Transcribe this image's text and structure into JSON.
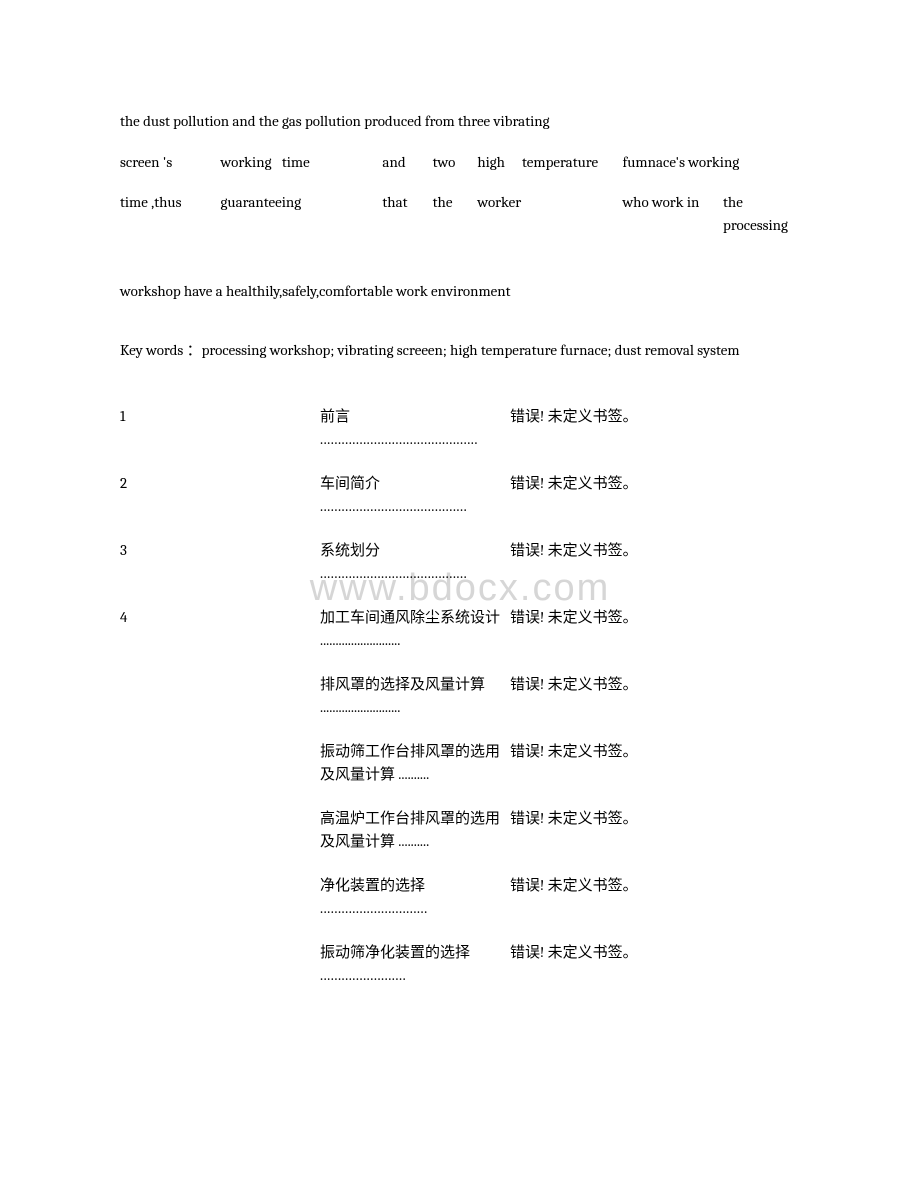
{
  "watermark": "www.bdocx.com",
  "para1": "the dust pollution and the gas pollution produced from three vibrating",
  "table1": {
    "r0": [
      "screen 's",
      "working",
      "time",
      "and",
      "two",
      "high",
      "temperature",
      "fumnace's working"
    ],
    "r1": [
      "time ,thus",
      "guaranteeing",
      "",
      "that",
      "the",
      "worker",
      "",
      "who work in",
      "the processing"
    ]
  },
  "para2": "workshop have a healthily,safely,comfortable work environment",
  "para3": "Key words  ：processing workshop; vibrating screeen; high temperature furnace; dust removal system",
  "toc": [
    {
      "num": "1",
      "label": "前言",
      "dots": "............................................",
      "err": "错误! 未定义书签。"
    },
    {
      "num": "2",
      "label": "车间简介",
      "dots": ".........................................",
      "err": "错误! 未定义书签。"
    },
    {
      "num": "3",
      "label": "系统划分",
      "dots": ".........................................",
      "err": "错误! 未定义书签。"
    },
    {
      "num": "4",
      "label": "加工车间通风除尘系统设计 ..........................",
      "dots": "",
      "err": "错误! 未定义书签。"
    },
    {
      "num": "",
      "label": "排风罩的选择及风量计算 ..........................",
      "dots": "",
      "err": "错误! 未定义书签。"
    },
    {
      "num": "",
      "label": "振动筛工作台排风罩的选用及风量计算 ..........",
      "dots": "",
      "err": "错误! 未定义书签。"
    },
    {
      "num": "",
      "label": "高温炉工作台排风罩的选用及风量计算 ..........",
      "dots": "",
      "err": "错误! 未定义书签。"
    },
    {
      "num": "",
      "label": "净化装置的选择",
      "dots": "..............................",
      "err": "错误! 未定义书签。"
    },
    {
      "num": "",
      "label": "振动筛净化装置的选择",
      "dots": "........................",
      "err": "错误! 未定义书签。"
    }
  ]
}
